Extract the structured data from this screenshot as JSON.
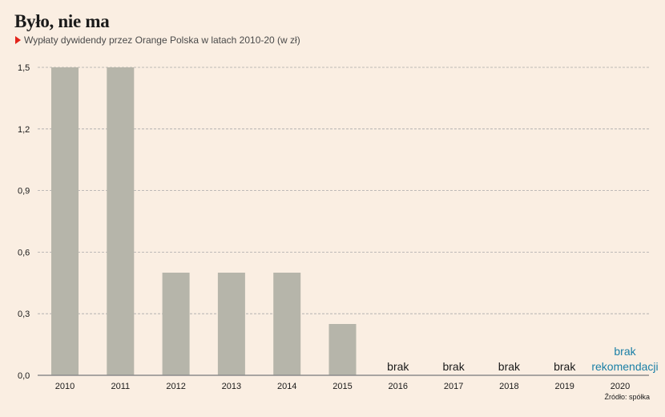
{
  "title": "Było, nie ma",
  "subtitle": "Wypłaty dywidendy przez Orange Polska w latach 2010-20 (w zł)",
  "source": "Źródło: spółka",
  "colors": {
    "background": "#faeee2",
    "bar": "#b6b5aa",
    "grid": "#a9a9a9",
    "axis": "#8c8c8c",
    "marker": "#e2231a",
    "highlight": "#1a7fa6"
  },
  "chart_data": {
    "type": "bar",
    "categories": [
      "2010",
      "2011",
      "2012",
      "2013",
      "2014",
      "2015",
      "2016",
      "2017",
      "2018",
      "2019",
      "2020"
    ],
    "values": [
      1.5,
      1.5,
      0.5,
      0.5,
      0.5,
      0.25,
      null,
      null,
      null,
      null,
      null
    ],
    "bar_labels": [
      "",
      "",
      "",
      "",
      "",
      "",
      "brak",
      "brak",
      "brak",
      "brak",
      "brak rekomendacji"
    ],
    "highlighted_labels": [
      10
    ],
    "yticks": [
      "0,0",
      "0,3",
      "0,6",
      "0,9",
      "1,2",
      "1,5"
    ],
    "ytick_values": [
      0,
      0.3,
      0.6,
      0.9,
      1.2,
      1.5
    ],
    "ylim": [
      0,
      1.5
    ],
    "grid": true
  }
}
